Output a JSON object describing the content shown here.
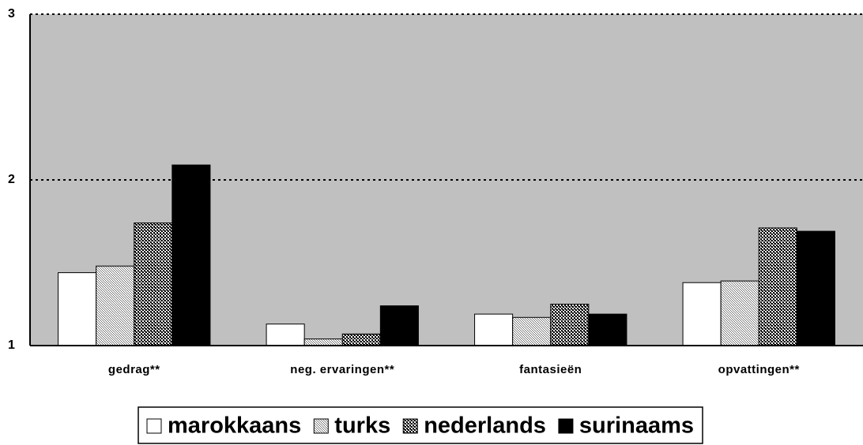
{
  "chart_data": {
    "type": "bar",
    "categories": [
      "gedrag**",
      "neg. ervaringen**",
      "fantasieën",
      "opvattingen**"
    ],
    "series": [
      {
        "name": "marokkaans",
        "color": "#ffffff",
        "pattern": "solid",
        "values": [
          1.44,
          1.13,
          1.19,
          1.38
        ]
      },
      {
        "name": "turks",
        "color": "#707070",
        "pattern": "fine",
        "values": [
          1.48,
          1.04,
          1.17,
          1.39
        ]
      },
      {
        "name": "nederlands",
        "color": "#000000",
        "pattern": "coarse",
        "values": [
          1.74,
          1.07,
          1.25,
          1.71
        ]
      },
      {
        "name": "surinaams",
        "color": "#000000",
        "pattern": "solid",
        "values": [
          2.09,
          1.24,
          1.19,
          1.69
        ]
      }
    ],
    "ylim": [
      1,
      3
    ],
    "yticks": [
      1,
      2,
      3
    ],
    "grid": true,
    "legend": "bottom",
    "background": "#c0c0c0"
  }
}
